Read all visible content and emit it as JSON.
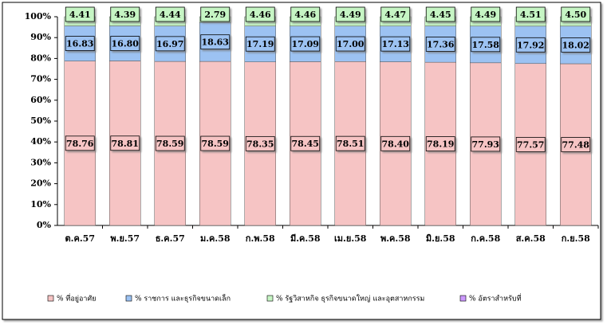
{
  "chart_data": {
    "type": "stacked_bar",
    "categories": [
      "ต.ค.57",
      "พ.ย.57",
      "ธ.ค.57",
      "ม.ค.58",
      "ก.พ.58",
      "มี.ค.58",
      "เม.ย.58",
      "พ.ค.58",
      "มิ.ย.58",
      "ก.ค.58",
      "ส.ค.58",
      "ก.ย.58"
    ],
    "series": [
      {
        "name": "% ที่อยู่อาศัย",
        "color": "#f6c4c4",
        "values": [
          78.76,
          78.81,
          78.59,
          78.59,
          78.35,
          78.45,
          78.51,
          78.4,
          78.19,
          77.93,
          77.57,
          77.48
        ],
        "value_labels": [
          "78.76",
          "78.81",
          "78.59",
          "78.59",
          "78.35",
          "78.45",
          "78.51",
          "78.40",
          "78.19",
          "77.93",
          "77.57",
          "77.48"
        ]
      },
      {
        "name": "% ราชการ และธุรกิจขนาดเล็ก",
        "color": "#9cc2f2",
        "values": [
          16.83,
          16.8,
          16.97,
          18.63,
          17.19,
          17.09,
          17.0,
          17.13,
          17.36,
          17.58,
          17.92,
          18.02
        ],
        "value_labels": [
          "16.83",
          "16.80",
          "16.97",
          "18.63",
          "17.19",
          "17.09",
          "17.00",
          "17.13",
          "17.36",
          "17.58",
          "17.92",
          "18.02"
        ]
      },
      {
        "name": "% รัฐวิสาหกิจ ธุรกิจขนาดใหญ่ และอุตสาหกรรม",
        "color": "#c6f5c4",
        "values": [
          4.41,
          4.39,
          4.44,
          2.79,
          4.46,
          4.46,
          4.49,
          4.47,
          4.45,
          4.49,
          4.51,
          4.5
        ],
        "value_labels": [
          "4.41",
          "4.39",
          "4.44",
          "2.79",
          "4.46",
          "4.46",
          "4.49",
          "4.47",
          "4.45",
          "4.49",
          "4.51",
          "4.50"
        ]
      },
      {
        "name": "% อัตราสำหรับที่",
        "color": "#cc99ff",
        "values": [
          0,
          0,
          0,
          0,
          0,
          0,
          0,
          0,
          0,
          0,
          0,
          0
        ]
      }
    ],
    "ylim": [
      0,
      100
    ],
    "yticks": [
      {
        "value": 0,
        "label": "0%"
      },
      {
        "value": 10,
        "label": "10%"
      },
      {
        "value": 20,
        "label": "20%"
      },
      {
        "value": 30,
        "label": "30%"
      },
      {
        "value": 40,
        "label": "40%"
      },
      {
        "value": 50,
        "label": "50%"
      },
      {
        "value": 60,
        "label": "60%"
      },
      {
        "value": 70,
        "label": "70%"
      },
      {
        "value": 80,
        "label": "80%"
      },
      {
        "value": 90,
        "label": "90%"
      },
      {
        "value": 100,
        "label": "100%"
      }
    ],
    "legend": "bottom"
  }
}
